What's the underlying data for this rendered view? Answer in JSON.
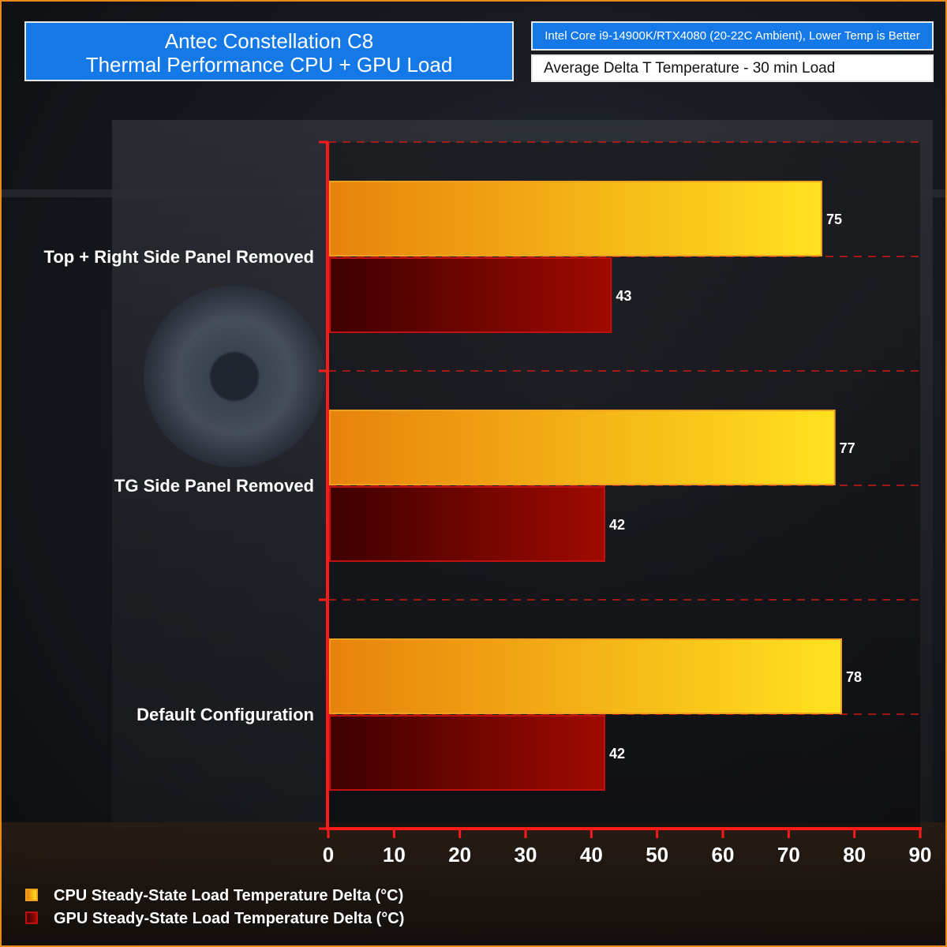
{
  "title": {
    "line1": "Antec Constellation C8",
    "line2": "Thermal Performance CPU + GPU Load"
  },
  "info": "Intel Core i9-14900K/RTX4080 (20-22C Ambient), Lower Temp is Better",
  "subtitle": "Average Delta T Temperature - 30 min Load",
  "colors": {
    "cpu_start": "#e8820c",
    "cpu_end": "#ffe21f",
    "cpu_border": "#f0a020",
    "gpu_start": "#3d0000",
    "gpu_end": "#a00a00",
    "gpu_border": "#c01010",
    "axis": "#ff1a1a"
  },
  "chart_data": {
    "type": "bar",
    "orientation": "horizontal",
    "categories": [
      "Top + Right Side Panel Removed",
      "TG Side Panel Removed",
      "Default Configuration"
    ],
    "series": [
      {
        "name": "CPU Steady-State Load Temperature Delta (°C)",
        "values": [
          75,
          77,
          78
        ]
      },
      {
        "name": "GPU Steady-State Load Temperature Delta (°C)",
        "values": [
          43,
          42,
          42
        ]
      }
    ],
    "xlim": [
      0,
      90
    ],
    "xticks": [
      0,
      10,
      20,
      30,
      40,
      50,
      60,
      70,
      80,
      90
    ],
    "grid": true,
    "legend_position": "bottom-left"
  },
  "legend": {
    "cpu": "CPU Steady-State Load Temperature Delta (°C)",
    "gpu": "GPU Steady-State Load Temperature Delta (°C)"
  }
}
